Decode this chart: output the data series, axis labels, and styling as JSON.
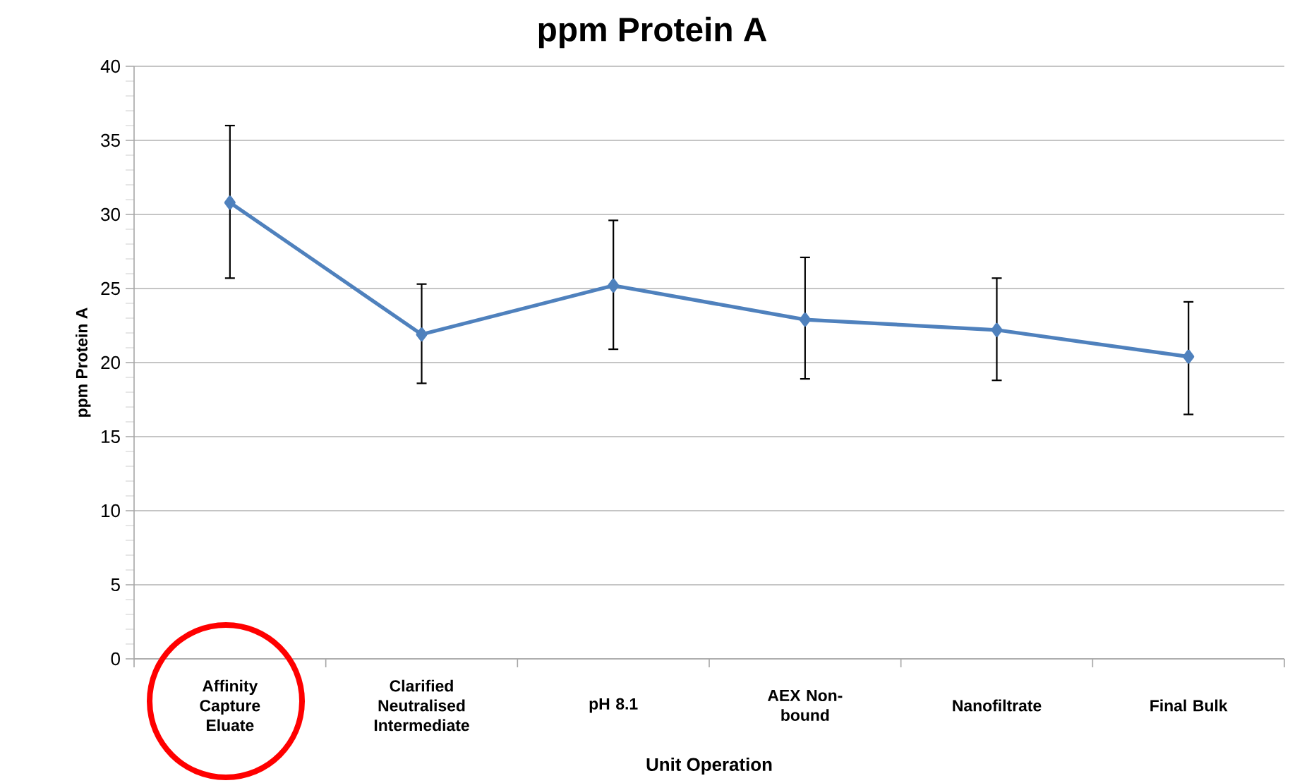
{
  "chart_data": {
    "type": "line",
    "title": "ppm Protein A",
    "xlabel": "Unit Operation",
    "ylabel": "ppm Protein A",
    "categories": [
      "Affinity Capture Eluate",
      "Clarified Neutralised Intermediate",
      "pH 8.1",
      "AEX Non-bound",
      "Nanofiltrate",
      "Final Bulk"
    ],
    "series": [
      {
        "color": "#4f81bd",
        "values": [
          30.8,
          21.9,
          25.2,
          22.9,
          22.2,
          20.4
        ],
        "errors": [
          [
            25.7,
            36.0
          ],
          [
            18.6,
            25.3
          ],
          [
            20.9,
            29.6
          ],
          [
            18.9,
            27.1
          ],
          [
            18.8,
            25.7
          ],
          [
            16.5,
            24.1
          ]
        ]
      }
    ],
    "ylim": [
      0,
      40
    ],
    "yticks": [
      0,
      5,
      10,
      15,
      20,
      25,
      30,
      35,
      40
    ],
    "grid": "y",
    "marker": "diamond",
    "line_style": "solid"
  }
}
